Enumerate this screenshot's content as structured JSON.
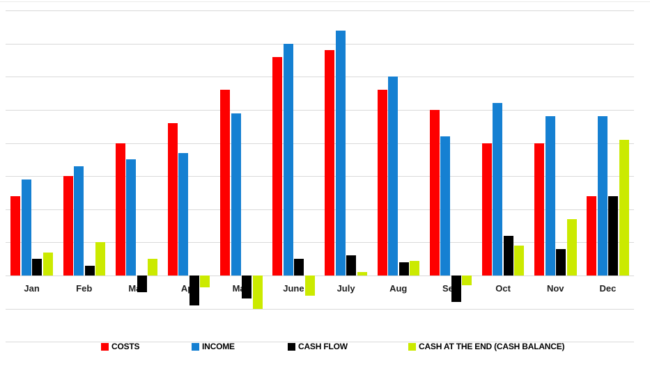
{
  "chart_data": {
    "type": "bar",
    "title": "",
    "xlabel": "",
    "ylabel": "",
    "categories": [
      "Jan",
      "Feb",
      "Mar",
      "Apr",
      "May",
      "June",
      "July",
      "Aug",
      "Sep",
      "Oct",
      "Nov",
      "Dec"
    ],
    "series": [
      {
        "name": "COSTS",
        "color": "#fe0000",
        "values": [
          24,
          30,
          40,
          46,
          56,
          66,
          68,
          56,
          50,
          40,
          40,
          24
        ]
      },
      {
        "name": "INCOME",
        "color": "#1580d2",
        "values": [
          29,
          33,
          35,
          37,
          49,
          70,
          74,
          60,
          42,
          52,
          48,
          48
        ]
      },
      {
        "name": "CASH FLOW",
        "color": "#000000",
        "values": [
          5,
          3,
          -5,
          -9,
          -7,
          5,
          6,
          4,
          -8,
          12,
          8,
          24
        ]
      },
      {
        "name": "CASH AT THE END (CASH BALANCE)",
        "color": "#cbea00",
        "values": [
          7,
          10,
          5,
          -3.5,
          -10,
          -6,
          1,
          4.5,
          -3,
          9,
          17,
          41
        ]
      }
    ],
    "ylim": [
      -20,
      80
    ],
    "grid_step": 10,
    "grid_on": true,
    "y_tick_labels_visible": false,
    "legend_position": "bottom",
    "legend_item_x": [
      145,
      275,
      413,
      586
    ]
  },
  "colors": {
    "background": "#ffffff",
    "gridline": "#d9d9d9",
    "axis_label_text": "#1f1f1f",
    "legend_text": "#000000"
  }
}
